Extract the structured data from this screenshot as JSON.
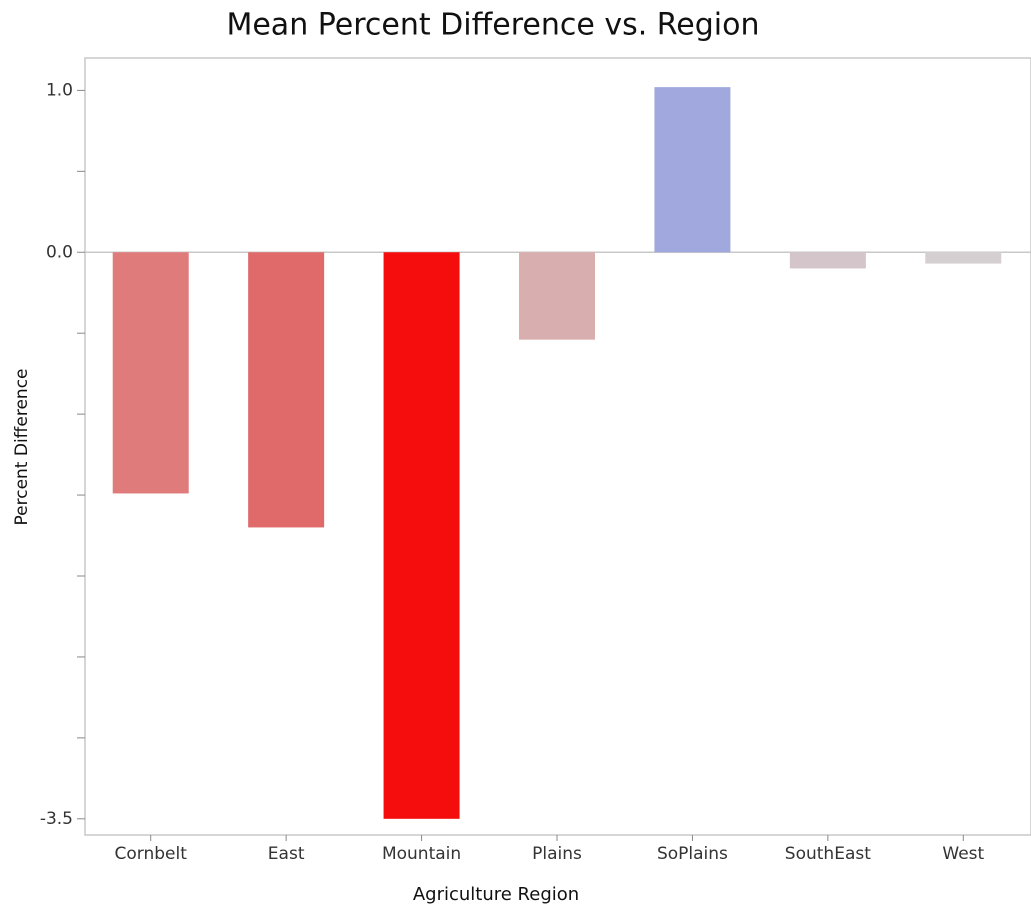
{
  "chart_data": {
    "type": "bar",
    "title": "Mean Percent Difference vs. Region",
    "xlabel": "Agriculture Region",
    "ylabel": "Percent Difference",
    "categories": [
      "Cornbelt",
      "East",
      "Mountain",
      "Plains",
      "SoPlains",
      "SouthEast",
      "West"
    ],
    "values": [
      -1.49,
      -1.7,
      -3.5,
      -0.54,
      1.02,
      -0.1,
      -0.07
    ],
    "colors": [
      "#e07b7b",
      "#e06a6a",
      "#f50c0c",
      "#d9aeae",
      "#a0a8de",
      "#d3c5c9",
      "#d5cfd2"
    ],
    "ylim": [
      -3.6,
      1.2
    ],
    "yticks": [
      {
        "value": 1,
        "label": "1.0"
      },
      {
        "value": 0,
        "label": "0.0"
      },
      {
        "value": -3.5,
        "label": "-3.5"
      }
    ],
    "yminorticks": [
      0.5,
      -0.5,
      -1,
      -1.5,
      -2,
      -2.5,
      -3
    ]
  }
}
